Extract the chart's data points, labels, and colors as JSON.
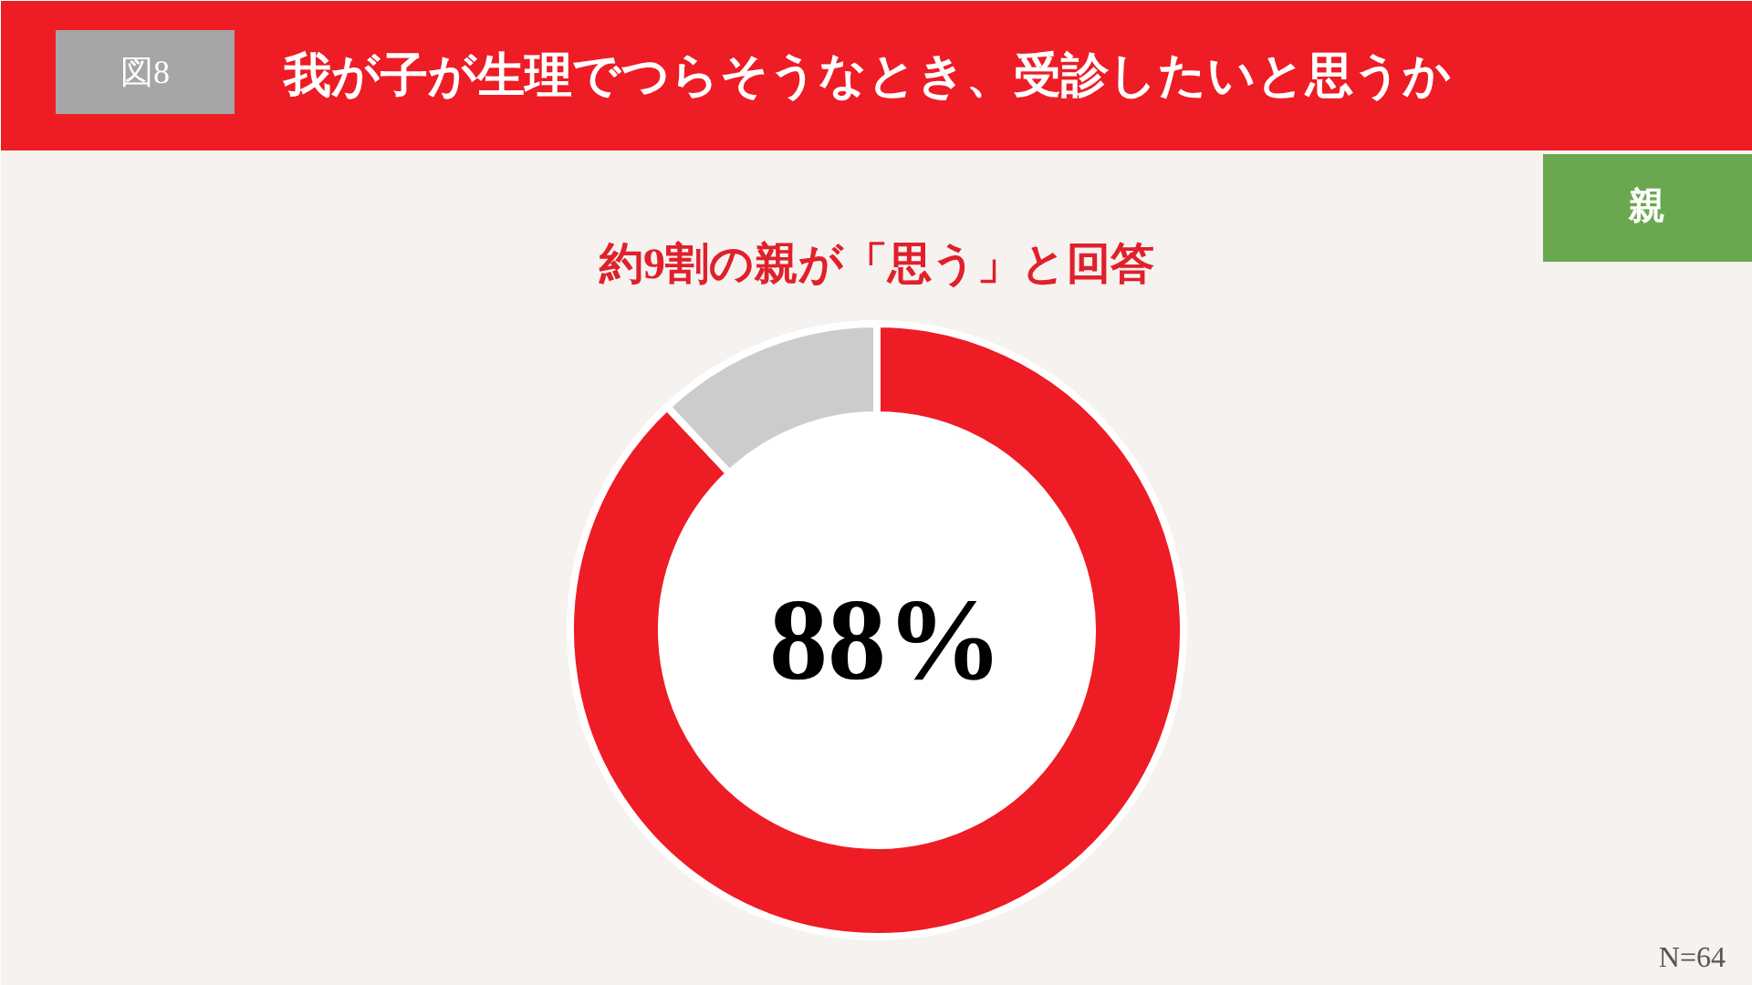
{
  "chart_data": {
    "type": "donut",
    "title": "我が子が生理でつらそうなとき、受診したいと思うか",
    "subtitle": "約9割の親が「思う」と回答",
    "categories": [
      null,
      null
    ],
    "values": [
      88,
      12
    ],
    "colors": [
      "#ee1c25",
      "#cccccc"
    ],
    "value_labels": [
      "88%",
      null
    ],
    "annotations": [
      "図8",
      "親",
      "N=64"
    ]
  }
}
